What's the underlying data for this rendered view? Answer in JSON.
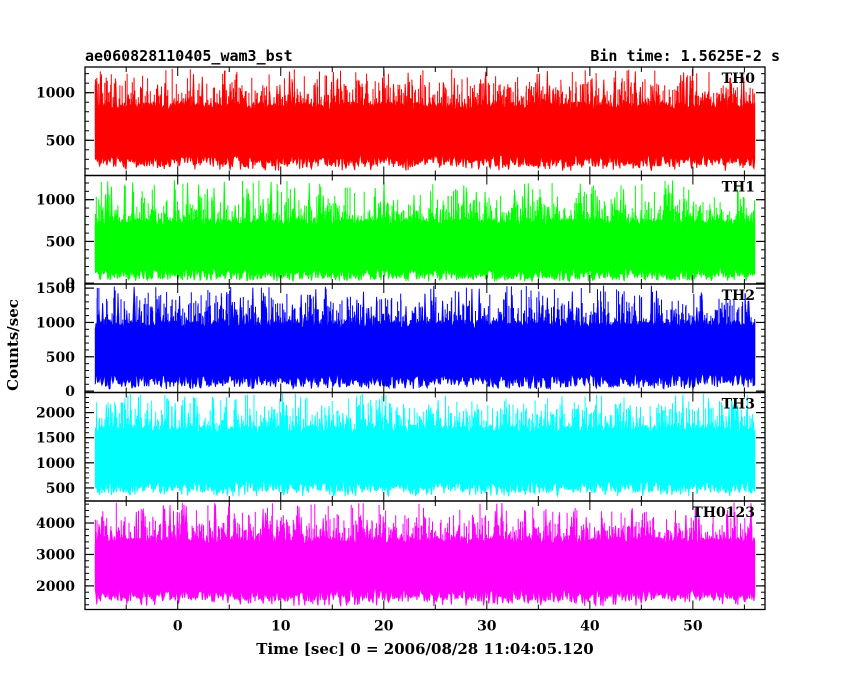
{
  "header": {
    "title": "ae060828110405_wam3_bst",
    "bin_time": "Bin time: 1.5625E-2 s"
  },
  "chart_data": {
    "type": "line",
    "title": "ae060828110405_wam3_bst",
    "subtitle": "Bin time: 1.5625E-2 s",
    "xlabel": "Time [sec] 0 = 2006/08/28 11:04:05.120",
    "ylabel": "Counts/sec",
    "xlim": [
      -9,
      57
    ],
    "data_x_range": [
      -8,
      56
    ],
    "x_ticks": [
      0,
      10,
      20,
      30,
      40,
      50
    ],
    "x_tick_labels": [
      "0",
      "10",
      "20",
      "30",
      "40",
      "50"
    ],
    "grid": false,
    "series": [
      {
        "name": "TH0",
        "color": "#ff0000",
        "ylim": [
          130,
          1270
        ],
        "y_ticks": [
          500,
          1000
        ],
        "y_tick_labels": [
          "500",
          "1000"
        ],
        "baseline": 220,
        "min": 180,
        "typical_low": 350,
        "typical_high": 880,
        "max": 1250
      },
      {
        "name": "TH1",
        "color": "#00ff00",
        "ylim": [
          -10,
          1290
        ],
        "y_ticks": [
          0,
          500,
          1000
        ],
        "y_tick_labels": [
          "0",
          "500",
          "1000"
        ],
        "baseline": 40,
        "min": 20,
        "typical_low": 200,
        "typical_high": 750,
        "max": 1250
      },
      {
        "name": "TH2",
        "color": "#0000ff",
        "ylim": [
          -20,
          1560
        ],
        "y_ticks": [
          0,
          500,
          1000,
          1500
        ],
        "y_tick_labels": [
          "0",
          "500",
          "1000",
          "1500"
        ],
        "baseline": 60,
        "min": 30,
        "typical_low": 250,
        "typical_high": 1000,
        "max": 1540
      },
      {
        "name": "TH3",
        "color": "#00ffff",
        "ylim": [
          240,
          2400
        ],
        "y_ticks": [
          500,
          1000,
          1500,
          2000
        ],
        "y_tick_labels": [
          "500",
          "1000",
          "1500",
          "2000"
        ],
        "baseline": 400,
        "min": 330,
        "typical_low": 650,
        "typical_high": 1700,
        "max": 2380
      },
      {
        "name": "TH0123",
        "color": "#ff00ff",
        "ylim": [
          1250,
          4700
        ],
        "y_ticks": [
          2000,
          3000,
          4000
        ],
        "y_tick_labels": [
          "2000",
          "3000",
          "4000"
        ],
        "baseline": 1500,
        "min": 1350,
        "typical_low": 2000,
        "typical_high": 3500,
        "max": 4650
      }
    ]
  }
}
